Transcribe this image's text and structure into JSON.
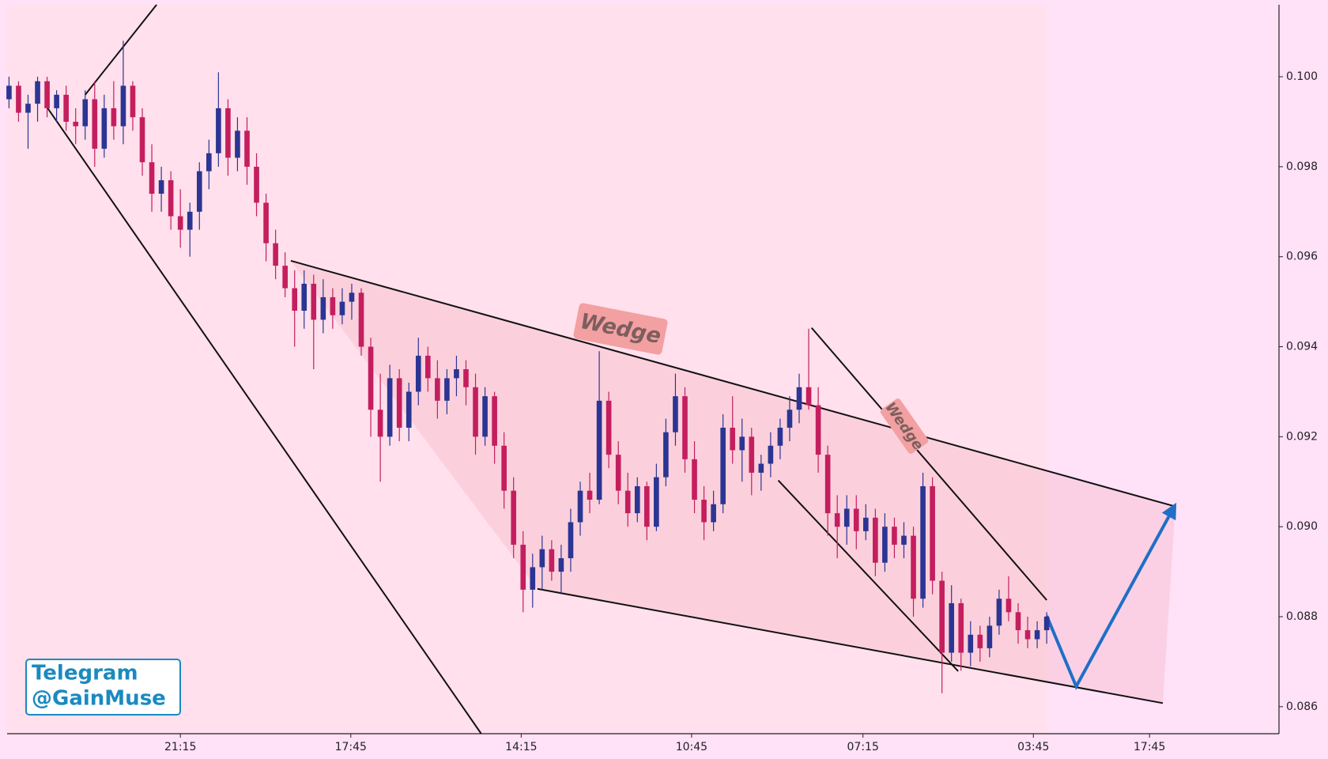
{
  "chart_data": {
    "type": "candlestick",
    "up_color": "#2b3593",
    "down_color": "#c41e5e",
    "xlim": [
      -0.2,
      133.4
    ],
    "ylim": [
      0.0854,
      0.1016
    ],
    "xticks": [
      {
        "value": 18.0,
        "label": "21:15"
      },
      {
        "value": 35.9,
        "label": "17:45"
      },
      {
        "value": 53.8,
        "label": "14:15"
      },
      {
        "value": 71.7,
        "label": "10:45"
      },
      {
        "value": 89.7,
        "label": "07:15"
      },
      {
        "value": 107.6,
        "label": "03:45"
      },
      {
        "value": 119.8,
        "label": "17:45"
      }
    ],
    "yticks": [
      0.086,
      0.088,
      {
        "value": 0.09,
        "label": "0.090"
      },
      0.092,
      0.094,
      0.096,
      0.098,
      {
        "value": 0.1,
        "label": "0.100"
      }
    ],
    "ohlc": [
      [
        0.0995,
        0.1,
        0.0993,
        0.0998
      ],
      [
        0.0998,
        0.0999,
        0.099,
        0.0992
      ],
      [
        0.0992,
        0.0996,
        0.0984,
        0.0994
      ],
      [
        0.0994,
        0.1,
        0.099,
        0.0999
      ],
      [
        0.0999,
        0.1,
        0.0991,
        0.0993
      ],
      [
        0.0993,
        0.0997,
        0.099,
        0.0996
      ],
      [
        0.0996,
        0.0998,
        0.0988,
        0.099
      ],
      [
        0.099,
        0.0993,
        0.0985,
        0.0989
      ],
      [
        0.0989,
        0.0997,
        0.0986,
        0.0995
      ],
      [
        0.0995,
        0.0999,
        0.098,
        0.0984
      ],
      [
        0.0984,
        0.0996,
        0.0982,
        0.0993
      ],
      [
        0.0993,
        0.0999,
        0.0986,
        0.0989
      ],
      [
        0.0989,
        0.1008,
        0.0985,
        0.0998
      ],
      [
        0.0998,
        0.0999,
        0.0988,
        0.0991
      ],
      [
        0.0991,
        0.0993,
        0.0978,
        0.0981
      ],
      [
        0.0981,
        0.0985,
        0.097,
        0.0974
      ],
      [
        0.0974,
        0.098,
        0.097,
        0.0977
      ],
      [
        0.0977,
        0.0979,
        0.0966,
        0.0969
      ],
      [
        0.0969,
        0.0975,
        0.0962,
        0.0966
      ],
      [
        0.0966,
        0.0972,
        0.096,
        0.097
      ],
      [
        0.097,
        0.0981,
        0.0966,
        0.0979
      ],
      [
        0.0979,
        0.0986,
        0.0975,
        0.0983
      ],
      [
        0.0983,
        0.1001,
        0.098,
        0.0993
      ],
      [
        0.0993,
        0.0995,
        0.0978,
        0.0982
      ],
      [
        0.0982,
        0.0991,
        0.0979,
        0.0988
      ],
      [
        0.0988,
        0.0991,
        0.0976,
        0.098
      ],
      [
        0.098,
        0.0983,
        0.0969,
        0.0972
      ],
      [
        0.0972,
        0.0974,
        0.0959,
        0.0963
      ],
      [
        0.0963,
        0.0966,
        0.0955,
        0.0958
      ],
      [
        0.0958,
        0.0961,
        0.0951,
        0.0953
      ],
      [
        0.0953,
        0.0957,
        0.094,
        0.0948
      ],
      [
        0.0948,
        0.0957,
        0.0944,
        0.0954
      ],
      [
        0.0954,
        0.0956,
        0.0935,
        0.0946
      ],
      [
        0.0946,
        0.0955,
        0.0943,
        0.0951
      ],
      [
        0.0951,
        0.0953,
        0.0944,
        0.0947
      ],
      [
        0.0947,
        0.0953,
        0.0945,
        0.095
      ],
      [
        0.095,
        0.0954,
        0.0946,
        0.0952
      ],
      [
        0.0952,
        0.0953,
        0.0938,
        0.094
      ],
      [
        0.094,
        0.0942,
        0.092,
        0.0926
      ],
      [
        0.0926,
        0.0934,
        0.091,
        0.092
      ],
      [
        0.092,
        0.0936,
        0.0918,
        0.0933
      ],
      [
        0.0933,
        0.0935,
        0.0919,
        0.0922
      ],
      [
        0.0922,
        0.0932,
        0.0919,
        0.093
      ],
      [
        0.093,
        0.0942,
        0.0927,
        0.0938
      ],
      [
        0.0938,
        0.094,
        0.093,
        0.0933
      ],
      [
        0.0933,
        0.0937,
        0.0924,
        0.0928
      ],
      [
        0.0928,
        0.0935,
        0.0925,
        0.0933
      ],
      [
        0.0933,
        0.0938,
        0.0929,
        0.0935
      ],
      [
        0.0935,
        0.0937,
        0.0927,
        0.0931
      ],
      [
        0.0931,
        0.0934,
        0.0916,
        0.092
      ],
      [
        0.092,
        0.0931,
        0.0918,
        0.0929
      ],
      [
        0.0929,
        0.093,
        0.0914,
        0.0918
      ],
      [
        0.0918,
        0.0921,
        0.0904,
        0.0908
      ],
      [
        0.0908,
        0.0911,
        0.0893,
        0.0896
      ],
      [
        0.0896,
        0.0899,
        0.0881,
        0.0886
      ],
      [
        0.0886,
        0.0894,
        0.0882,
        0.0891
      ],
      [
        0.0891,
        0.0898,
        0.0886,
        0.0895
      ],
      [
        0.0895,
        0.0897,
        0.0888,
        0.089
      ],
      [
        0.089,
        0.0896,
        0.0885,
        0.0893
      ],
      [
        0.0893,
        0.0904,
        0.089,
        0.0901
      ],
      [
        0.0901,
        0.091,
        0.0898,
        0.0908
      ],
      [
        0.0908,
        0.0912,
        0.0903,
        0.0906
      ],
      [
        0.0906,
        0.0939,
        0.0905,
        0.0928
      ],
      [
        0.0928,
        0.093,
        0.0913,
        0.0916
      ],
      [
        0.0916,
        0.0919,
        0.0905,
        0.0908
      ],
      [
        0.0908,
        0.0912,
        0.09,
        0.0903
      ],
      [
        0.0903,
        0.0911,
        0.0901,
        0.0909
      ],
      [
        0.0909,
        0.091,
        0.0897,
        0.09
      ],
      [
        0.09,
        0.0914,
        0.0899,
        0.0911
      ],
      [
        0.0911,
        0.0924,
        0.0909,
        0.0921
      ],
      [
        0.0921,
        0.0934,
        0.0918,
        0.0929
      ],
      [
        0.0929,
        0.0931,
        0.0912,
        0.0915
      ],
      [
        0.0915,
        0.0919,
        0.0903,
        0.0906
      ],
      [
        0.0906,
        0.0909,
        0.0897,
        0.0901
      ],
      [
        0.0901,
        0.0908,
        0.0899,
        0.0905
      ],
      [
        0.0905,
        0.0925,
        0.0903,
        0.0922
      ],
      [
        0.0922,
        0.0929,
        0.0914,
        0.0917
      ],
      [
        0.0917,
        0.0924,
        0.091,
        0.092
      ],
      [
        0.092,
        0.0922,
        0.0907,
        0.0912
      ],
      [
        0.0912,
        0.0916,
        0.0908,
        0.0914
      ],
      [
        0.0914,
        0.0921,
        0.0911,
        0.0918
      ],
      [
        0.0918,
        0.0924,
        0.0915,
        0.0922
      ],
      [
        0.0922,
        0.0929,
        0.0919,
        0.0926
      ],
      [
        0.0926,
        0.0934,
        0.0923,
        0.0931
      ],
      [
        0.0931,
        0.0944,
        0.0926,
        0.0927
      ],
      [
        0.0927,
        0.0931,
        0.0912,
        0.0916
      ],
      [
        0.0916,
        0.0918,
        0.0898,
        0.0903
      ],
      [
        0.0903,
        0.0907,
        0.0893,
        0.09
      ],
      [
        0.09,
        0.0907,
        0.0896,
        0.0904
      ],
      [
        0.0904,
        0.0907,
        0.0895,
        0.0899
      ],
      [
        0.0899,
        0.0905,
        0.0897,
        0.0902
      ],
      [
        0.0902,
        0.0904,
        0.0889,
        0.0892
      ],
      [
        0.0892,
        0.0903,
        0.089,
        0.09
      ],
      [
        0.09,
        0.0902,
        0.0893,
        0.0896
      ],
      [
        0.0896,
        0.0901,
        0.0893,
        0.0898
      ],
      [
        0.0898,
        0.09,
        0.088,
        0.0884
      ],
      [
        0.0884,
        0.0912,
        0.0882,
        0.0909
      ],
      [
        0.0909,
        0.0911,
        0.0885,
        0.0888
      ],
      [
        0.0888,
        0.089,
        0.0863,
        0.0872
      ],
      [
        0.0872,
        0.0887,
        0.087,
        0.0883
      ],
      [
        0.0883,
        0.0884,
        0.0868,
        0.0872
      ],
      [
        0.0872,
        0.0879,
        0.0869,
        0.0876
      ],
      [
        0.0876,
        0.0878,
        0.087,
        0.0873
      ],
      [
        0.0873,
        0.088,
        0.0871,
        0.0878
      ],
      [
        0.0878,
        0.0886,
        0.0876,
        0.0884
      ],
      [
        0.0884,
        0.0889,
        0.0879,
        0.0881
      ],
      [
        0.0881,
        0.0883,
        0.0874,
        0.0877
      ],
      [
        0.0877,
        0.088,
        0.0873,
        0.0875
      ],
      [
        0.0875,
        0.0879,
        0.0873,
        0.0877
      ],
      [
        0.0877,
        0.0881,
        0.0874,
        0.088
      ]
    ],
    "lines": [
      {
        "points": [
          [
            4.0,
            0.09932
          ],
          [
            49.6,
            0.0854
          ]
        ],
        "color": "#111111"
      },
      {
        "points": [
          [
            8.0,
            0.0996
          ],
          [
            15.5,
            0.1016
          ]
        ],
        "color": "#111111"
      },
      {
        "points": [
          [
            29.6,
            0.09591
          ],
          [
            122.5,
            0.09045
          ]
        ],
        "color": "#111111"
      },
      {
        "points": [
          [
            55.5,
            0.08862
          ],
          [
            121.2,
            0.08608
          ]
        ],
        "color": "#111111"
      },
      {
        "points": [
          [
            84.3,
            0.09442
          ],
          [
            109.0,
            0.08837
          ]
        ],
        "color": "#111111"
      },
      {
        "points": [
          [
            80.8,
            0.09103
          ],
          [
            99.7,
            0.08679
          ]
        ],
        "color": "#111111"
      },
      {
        "points": [
          [
            109.0,
            0.08802
          ],
          [
            112.1,
            0.08645
          ],
          [
            122.3,
            0.09041
          ]
        ],
        "color": "#1e6fc7"
      }
    ],
    "annotations": [
      "Wedge",
      "Wedge"
    ],
    "watermark": [
      "Telegram",
      "@GainMuse"
    ]
  }
}
